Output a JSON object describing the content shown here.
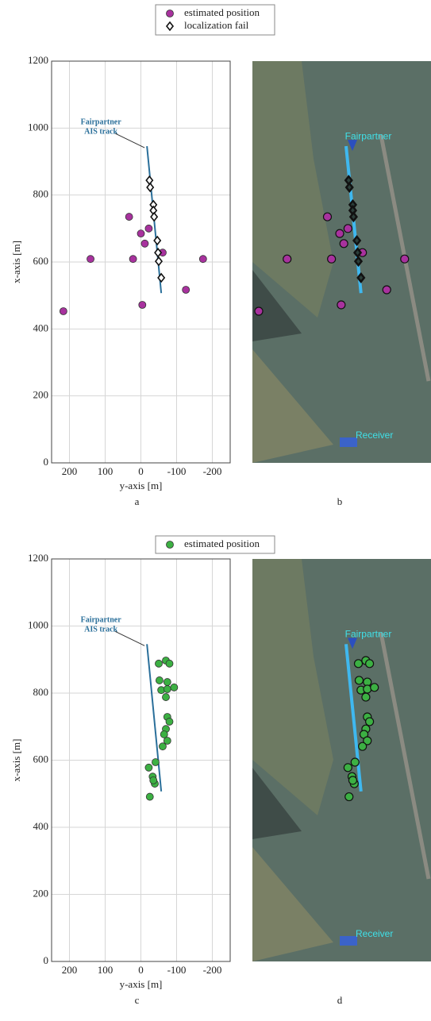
{
  "chart_data": [
    {
      "type": "scatter",
      "caption": "a",
      "x_label": "y-axis [m]",
      "y_label": "x-axis [m]",
      "xlim": [
        250,
        -250
      ],
      "xticks": [
        200,
        100,
        0,
        -100,
        -200
      ],
      "ylim": [
        0,
        1200
      ],
      "yticks": [
        0,
        200,
        400,
        600,
        800,
        1000,
        1200
      ],
      "grid": true,
      "legend": "top",
      "annotation": [
        "Fairpartner",
        "AIS track"
      ],
      "track": {
        "color": "#2a6f9a",
        "x": [
          -17,
          -57
        ],
        "y": [
          946,
          507
        ]
      },
      "series": [
        {
          "name": "estimated position",
          "color": "#a8329e",
          "marker": "circle",
          "x": [
            217,
            141,
            33,
            22,
            0,
            -11,
            -22,
            -4,
            -126,
            -174,
            -61
          ],
          "values": [
            453,
            609,
            735,
            609,
            685,
            655,
            700,
            472,
            517,
            609,
            628
          ]
        },
        {
          "name": "localization fail",
          "color": "#111111",
          "marker": "diamond",
          "x": [
            -24,
            -26,
            -35,
            -35,
            -37,
            -46,
            -48,
            -50,
            -57
          ],
          "values": [
            844,
            823,
            771,
            754,
            735,
            664,
            628,
            602,
            553
          ]
        }
      ]
    },
    {
      "type": "scatter",
      "caption": "c",
      "x_label": "y-axis [m]",
      "y_label": "x-axis [m]",
      "xlim": [
        250,
        -250
      ],
      "xticks": [
        200,
        100,
        0,
        -100,
        -200
      ],
      "ylim": [
        0,
        1200
      ],
      "yticks": [
        0,
        200,
        400,
        600,
        800,
        1000,
        1200
      ],
      "grid": true,
      "legend": "top",
      "annotation": [
        "Fairpartner",
        "AIS track"
      ],
      "track": {
        "color": "#2a6f9a",
        "x": [
          -17,
          -57
        ],
        "y": [
          946,
          507
        ]
      },
      "series": [
        {
          "name": "estimated position",
          "color": "#3cb043",
          "marker": "circle",
          "x": [
            -50,
            -70,
            -80,
            -52,
            -74,
            -57,
            -74,
            -93,
            -70,
            -74,
            -80,
            -70,
            -65,
            -74,
            -61,
            -41,
            -22,
            -33,
            -39,
            -35,
            -25
          ],
          "values": [
            888,
            897,
            888,
            838,
            833,
            809,
            812,
            817,
            788,
            729,
            715,
            693,
            677,
            658,
            641,
            594,
            578,
            551,
            530,
            540,
            491
          ]
        }
      ]
    }
  ],
  "maps": [
    {
      "caption": "b",
      "ship_label": "Fairpartner",
      "receiver_label": "Receiver"
    },
    {
      "caption": "d",
      "ship_label": "Fairpartner",
      "receiver_label": "Receiver"
    }
  ]
}
